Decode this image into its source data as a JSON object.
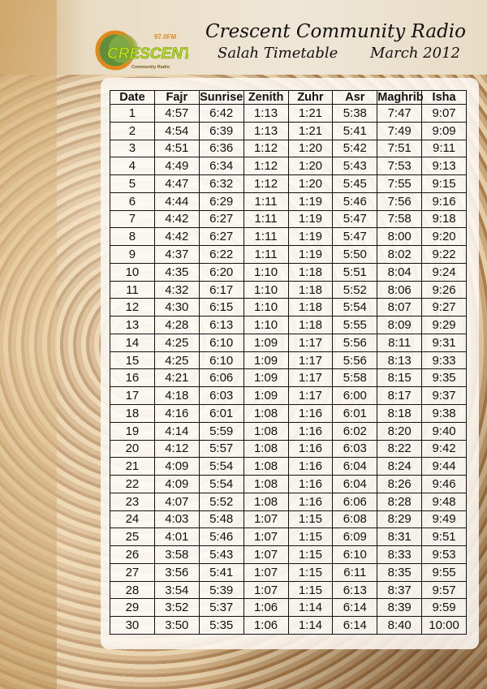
{
  "header": {
    "logo": {
      "brand": "CRESCENT",
      "frequency": "97.0FM",
      "tagline": "Community Radio",
      "colors": {
        "green": "#9acd1f",
        "orange": "#e08a1e"
      }
    },
    "title": "Crescent Community Radio",
    "subtitle": "Salah Timetable",
    "month": "March 2012"
  },
  "table": {
    "columns": [
      "Date",
      "Fajr",
      "Sunrise",
      "Zenith",
      "Zuhr",
      "Asr",
      "Maghrib",
      "Isha"
    ],
    "rows": [
      [
        "1",
        "4:57",
        "6:42",
        "1:13",
        "1:21",
        "5:38",
        "7:47",
        "9:07"
      ],
      [
        "2",
        "4:54",
        "6:39",
        "1:13",
        "1:21",
        "5:41",
        "7:49",
        "9:09"
      ],
      [
        "3",
        "4:51",
        "6:36",
        "1:12",
        "1:20",
        "5:42",
        "7:51",
        "9:11"
      ],
      [
        "4",
        "4:49",
        "6:34",
        "1:12",
        "1:20",
        "5:43",
        "7:53",
        "9:13"
      ],
      [
        "5",
        "4:47",
        "6:32",
        "1:12",
        "1:20",
        "5:45",
        "7:55",
        "9:15"
      ],
      [
        "6",
        "4:44",
        "6:29",
        "1:11",
        "1:19",
        "5:46",
        "7:56",
        "9:16"
      ],
      [
        "7",
        "4:42",
        "6:27",
        "1:11",
        "1:19",
        "5:47",
        "7:58",
        "9:18"
      ],
      [
        "8",
        "4:42",
        "6:27",
        "1:11",
        "1:19",
        "5:47",
        "8:00",
        "9:20"
      ],
      [
        "9",
        "4:37",
        "6:22",
        "1:11",
        "1:19",
        "5:50",
        "8:02",
        "9:22"
      ],
      [
        "10",
        "4:35",
        "6:20",
        "1:10",
        "1:18",
        "5:51",
        "8:04",
        "9:24"
      ],
      [
        "11",
        "4:32",
        "6:17",
        "1:10",
        "1:18",
        "5:52",
        "8:06",
        "9:26"
      ],
      [
        "12",
        "4:30",
        "6:15",
        "1:10",
        "1:18",
        "5:54",
        "8:07",
        "9:27"
      ],
      [
        "13",
        "4:28",
        "6:13",
        "1:10",
        "1:18",
        "5:55",
        "8:09",
        "9:29"
      ],
      [
        "14",
        "4:25",
        "6:10",
        "1:09",
        "1:17",
        "5:56",
        "8:11",
        "9:31"
      ],
      [
        "15",
        "4:25",
        "6:10",
        "1:09",
        "1:17",
        "5:56",
        "8:13",
        "9:33"
      ],
      [
        "16",
        "4:21",
        "6:06",
        "1:09",
        "1:17",
        "5:58",
        "8:15",
        "9:35"
      ],
      [
        "17",
        "4:18",
        "6:03",
        "1:09",
        "1:17",
        "6:00",
        "8:17",
        "9:37"
      ],
      [
        "18",
        "4:16",
        "6:01",
        "1:08",
        "1:16",
        "6:01",
        "8:18",
        "9:38"
      ],
      [
        "19",
        "4:14",
        "5:59",
        "1:08",
        "1:16",
        "6:02",
        "8:20",
        "9:40"
      ],
      [
        "20",
        "4:12",
        "5:57",
        "1:08",
        "1:16",
        "6:03",
        "8:22",
        "9:42"
      ],
      [
        "21",
        "4:09",
        "5:54",
        "1:08",
        "1:16",
        "6:04",
        "8:24",
        "9:44"
      ],
      [
        "22",
        "4:09",
        "5:54",
        "1:08",
        "1:16",
        "6:04",
        "8:26",
        "9:46"
      ],
      [
        "23",
        "4:07",
        "5:52",
        "1:08",
        "1:16",
        "6:06",
        "8:28",
        "9:48"
      ],
      [
        "24",
        "4:03",
        "5:48",
        "1:07",
        "1:15",
        "6:08",
        "8:29",
        "9:49"
      ],
      [
        "25",
        "4:01",
        "5:46",
        "1:07",
        "1:15",
        "6:09",
        "8:31",
        "9:51"
      ],
      [
        "26",
        "3:58",
        "5:43",
        "1:07",
        "1:15",
        "6:10",
        "8:33",
        "9:53"
      ],
      [
        "27",
        "3:56",
        "5:41",
        "1:07",
        "1:15",
        "6:11",
        "8:35",
        "9:55"
      ],
      [
        "28",
        "3:54",
        "5:39",
        "1:07",
        "1:15",
        "6:13",
        "8:37",
        "9:57"
      ],
      [
        "29",
        "3:52",
        "5:37",
        "1:06",
        "1:14",
        "6:14",
        "8:39",
        "9:59"
      ],
      [
        "30",
        "3:50",
        "5:35",
        "1:06",
        "1:14",
        "6:14",
        "8:40",
        "10:00"
      ]
    ]
  }
}
